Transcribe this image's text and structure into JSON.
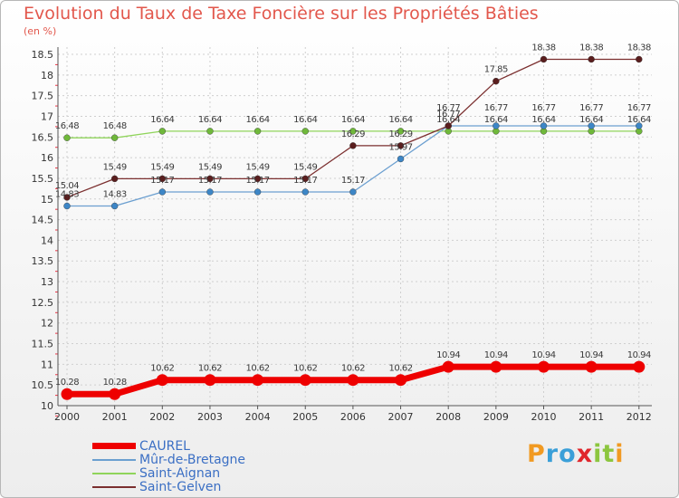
{
  "title": "Evolution du Taux de Taxe Foncière sur les Propriétés Bâties",
  "unit": "(en %)",
  "logo": {
    "letters": [
      "P",
      "r",
      "o",
      "x",
      "i",
      "t",
      "i"
    ],
    "colors": [
      "#f19a22",
      "#3a9fd8",
      "#3a9fd8",
      "#e0262c",
      "#8cc63f",
      "#8cc63f",
      "#f19a22"
    ]
  },
  "chart_data": {
    "type": "line",
    "title": "Evolution du Taux de Taxe Foncière sur les Propriétés Bâties",
    "ylabel": "(en %)",
    "xlabel": "",
    "x": [
      "2000",
      "2001",
      "2002",
      "2003",
      "2004",
      "2005",
      "2006",
      "2007",
      "2008",
      "2009",
      "2010",
      "2011",
      "2012"
    ],
    "ylim": [
      10,
      18.5
    ],
    "yticks": [
      "10",
      "10.5",
      "11",
      "11.5",
      "12",
      "12.5",
      "13",
      "13.5",
      "14",
      "14.5",
      "15",
      "15.5",
      "16",
      "16.5",
      "17",
      "17.5",
      "18",
      "18.5"
    ],
    "legend_position": "bottom-left",
    "series": [
      {
        "name": "CAUREL",
        "color": "#ee0000",
        "values": [
          10.28,
          10.28,
          10.62,
          10.62,
          10.62,
          10.62,
          10.62,
          10.62,
          10.94,
          10.94,
          10.94,
          10.94,
          10.94
        ],
        "labels": [
          "10.28",
          "10.28",
          "10.62",
          "10.62",
          "10.62",
          "10.62",
          "10.62",
          "10.62",
          "10.94",
          "10.94",
          "10.94",
          "10.94",
          "10.94"
        ]
      },
      {
        "name": "Mûr-de-Bretagne",
        "color": "#6b9fd0",
        "values": [
          14.83,
          14.83,
          15.17,
          15.17,
          15.17,
          15.17,
          15.17,
          15.97,
          16.77,
          16.77,
          16.77,
          16.77,
          16.77
        ],
        "labels": [
          "14.83",
          "14.83",
          "15.17",
          "15.17",
          "15.17",
          "15.17",
          "15.17",
          "15.97",
          "16.77",
          "16.77",
          "16.77",
          "16.77",
          "16.77"
        ]
      },
      {
        "name": "Saint-Aignan",
        "color": "#8fd45a",
        "values": [
          16.48,
          16.48,
          16.64,
          16.64,
          16.64,
          16.64,
          16.64,
          16.64,
          16.64,
          16.64,
          16.64,
          16.64,
          16.64
        ],
        "labels": [
          "16.48",
          "16.48",
          "16.64",
          "16.64",
          "16.64",
          "16.64",
          "16.64",
          "16.64",
          "16.64",
          "16.64",
          "16.64",
          "16.64",
          "16.64"
        ]
      },
      {
        "name": "Saint-Gelven",
        "color": "#7b2f2f",
        "values": [
          15.04,
          15.49,
          15.49,
          15.49,
          15.49,
          15.49,
          16.29,
          16.29,
          16.77,
          17.85,
          18.38,
          18.38,
          18.38
        ],
        "labels": [
          "15.04",
          "15.49",
          "15.49",
          "15.49",
          "15.49",
          "15.49",
          "16.29",
          "16.29",
          "16.77",
          "17.85",
          "18.38",
          "18.38",
          "18.38"
        ]
      }
    ]
  }
}
